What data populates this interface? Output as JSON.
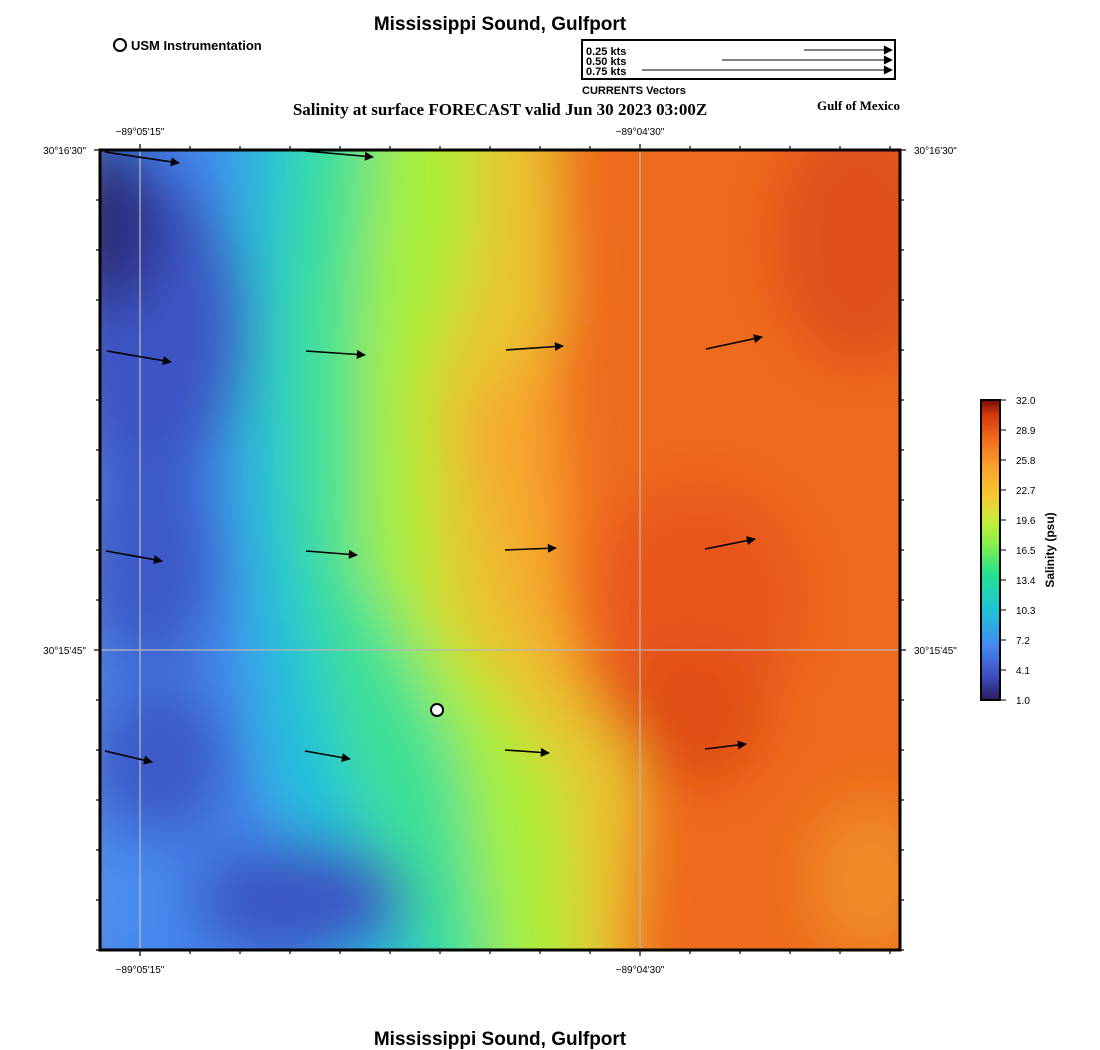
{
  "header": {
    "title": "Mississippi Sound, Gulfport",
    "subtitle": "Salinity at surface FORECAST valid Jun 30 2023 03:00Z",
    "region": "Gulf of Mexico",
    "footer_title": "Mississippi Sound, Gulfport"
  },
  "legend": {
    "station_label": "USM Instrumentation",
    "vectors_caption": "CURRENTS Vectors",
    "vector_scale": [
      {
        "label": "0.25 kts",
        "kts": 0.25
      },
      {
        "label": "0.50 kts",
        "kts": 0.5
      },
      {
        "label": "0.75 kts",
        "kts": 0.75
      }
    ]
  },
  "axes": {
    "lon_ticks": [
      "−89°05'15\"",
      "−89°04'30\""
    ],
    "lat_ticks": [
      "30°16'30\"",
      "30°15'45\""
    ]
  },
  "colorbar": {
    "label": "Salinity (psu)",
    "min": 1.0,
    "max": 32.0,
    "ticks": [
      "32.0",
      "28.9",
      "25.8",
      "22.7",
      "19.6",
      "16.5",
      "13.4",
      "10.3",
      "7.2",
      "4.1",
      "1.0"
    ],
    "colors": [
      "#2a1a5e",
      "#3e4fbf",
      "#4488f2",
      "#1ec4d8",
      "#22e28e",
      "#88f04a",
      "#c8ec38",
      "#f6c832",
      "#f9a02c",
      "#ee6518",
      "#d2380c",
      "#7a0c04"
    ]
  }
}
